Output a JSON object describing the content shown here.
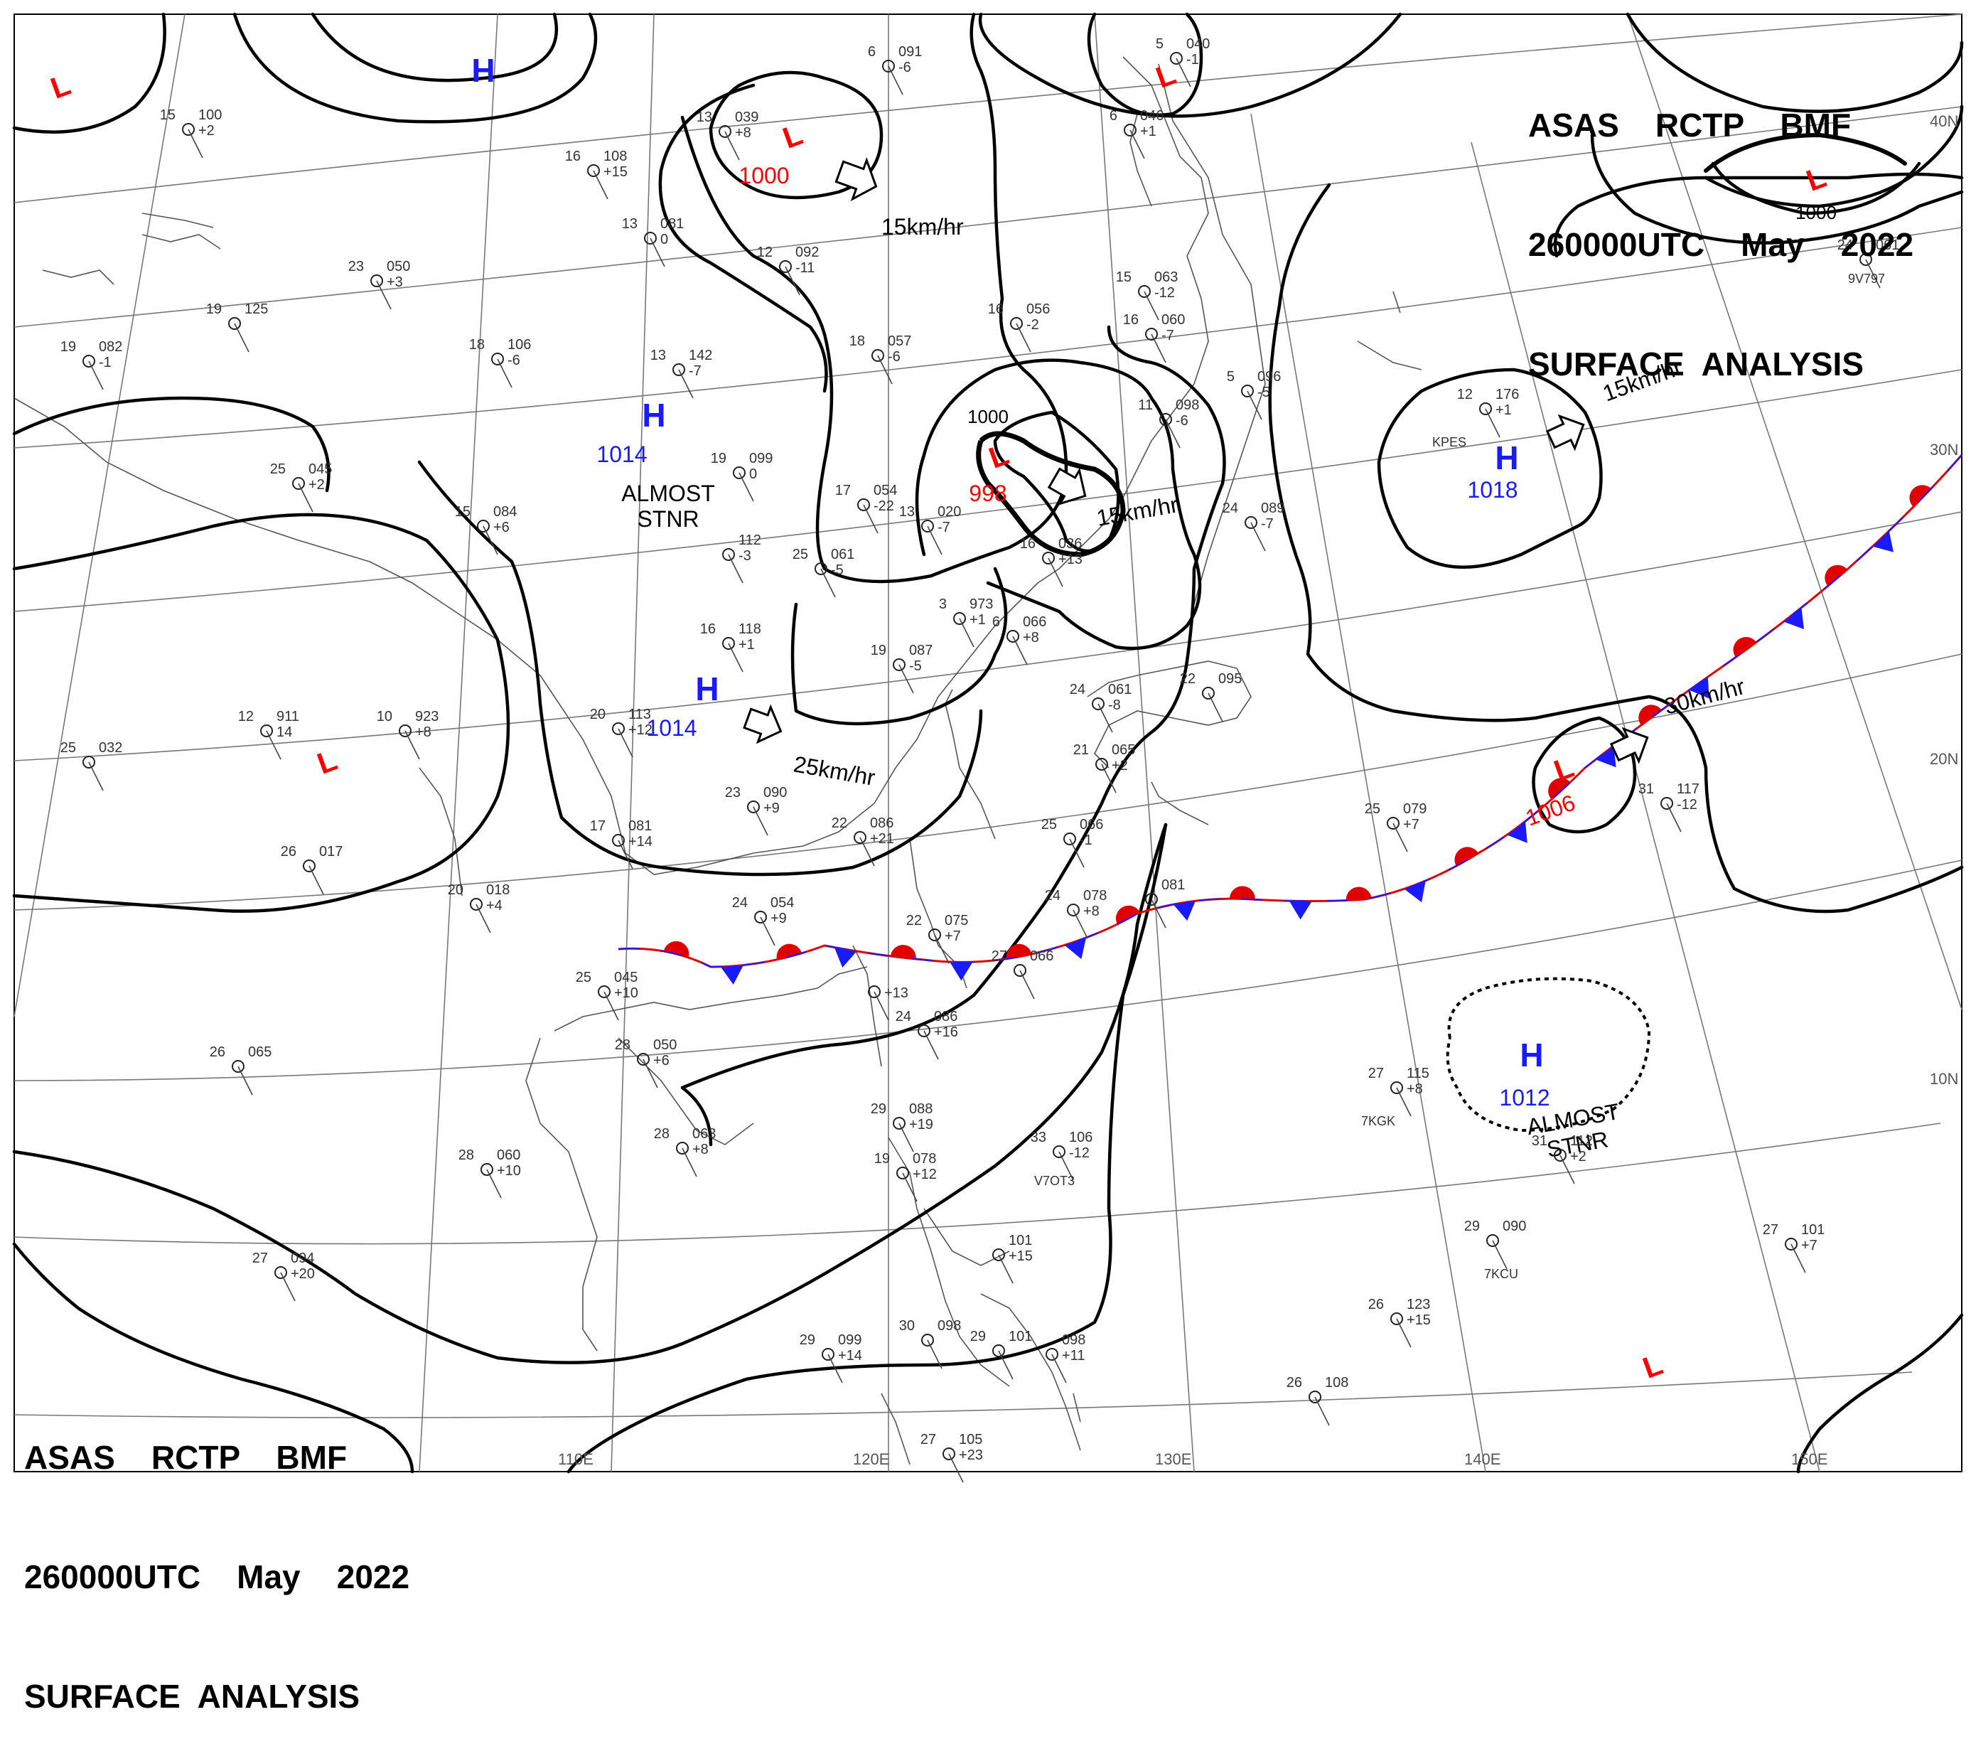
{
  "header": {
    "lines": [
      "ASAS    RCTP    BMF",
      "260000UTC    May    2022",
      "SURFACE  ANALYSIS"
    ]
  },
  "footer": {
    "lines": [
      "ASAS    RCTP    BMF",
      "260000UTC    May    2022",
      "SURFACE  ANALYSIS"
    ]
  },
  "colors": {
    "high": "#1a1aff",
    "low": "#ff0000",
    "isobar": "#000000",
    "grid": "#666666",
    "coast": "#555555"
  },
  "grid": {
    "lon_labels": [
      "110E",
      "120E",
      "130E",
      "140E",
      "150E"
    ],
    "lat_labels": [
      "40N",
      "30N",
      "20N",
      "10N"
    ]
  },
  "pressure_centers": [
    {
      "type": "L",
      "value": ""
    },
    {
      "type": "H",
      "value": ""
    },
    {
      "type": "L",
      "value": "1000"
    },
    {
      "type": "L",
      "value": ""
    },
    {
      "type": "L",
      "value": ""
    },
    {
      "type": "H",
      "value": "1014"
    },
    {
      "type": "L",
      "value": "998"
    },
    {
      "type": "H",
      "value": "1018"
    },
    {
      "type": "H",
      "value": "1014"
    },
    {
      "type": "L",
      "value": ""
    },
    {
      "type": "L",
      "value": "1006"
    },
    {
      "type": "H",
      "value": "1012"
    },
    {
      "type": "L",
      "value": ""
    }
  ],
  "isobar_labels": [
    "1000",
    "1000"
  ],
  "motion": [
    {
      "label": "15km/hr"
    },
    {
      "label": "15km/hr"
    },
    {
      "label": "15km/hr"
    },
    {
      "label": "25km/hr"
    },
    {
      "label": "30km/hr"
    }
  ],
  "annotations": [
    {
      "lines": [
        "ALMOST",
        "STNR"
      ]
    },
    {
      "lines": [
        "ALMOST",
        "STNR"
      ]
    }
  ],
  "stations": [
    {
      "t": "15",
      "p": "100",
      "d": "+2"
    },
    {
      "t": "13",
      "p": "039",
      "d": "+8"
    },
    {
      "t": "6",
      "p": "091",
      "d": "-6"
    },
    {
      "t": "5",
      "p": "040",
      "d": "-1"
    },
    {
      "t": "6",
      "p": "046",
      "d": "+1"
    },
    {
      "t": "16",
      "p": "108",
      "d": "+15"
    },
    {
      "t": "13",
      "p": "081",
      "d": "0"
    },
    {
      "t": "12",
      "p": "092",
      "d": "-11"
    },
    {
      "t": "23",
      "p": "050",
      "d": "+3"
    },
    {
      "t": "19",
      "p": "125",
      "d": ""
    },
    {
      "t": "18",
      "p": "106",
      "d": "-6"
    },
    {
      "t": "19",
      "p": "082",
      "d": "-1"
    },
    {
      "t": "13",
      "p": "142",
      "d": "-7"
    },
    {
      "t": "18",
      "p": "057",
      "d": "-6"
    },
    {
      "t": "16",
      "p": "056",
      "d": "-2"
    },
    {
      "t": "15",
      "p": "063",
      "d": "-12"
    },
    {
      "t": "16",
      "p": "060",
      "d": "-7"
    },
    {
      "t": "5",
      "p": "096",
      "d": "-5"
    },
    {
      "t": "11",
      "p": "098",
      "d": "-6"
    },
    {
      "t": "12",
      "p": "176",
      "d": "+1"
    },
    {
      "t": "24",
      "p": "061",
      "d": ""
    },
    {
      "t": "25",
      "p": "045",
      "d": "+2"
    },
    {
      "t": "15",
      "p": "084",
      "d": "+6"
    },
    {
      "t": "19",
      "p": "099",
      "d": "0"
    },
    {
      "t": "17",
      "p": "054",
      "d": "-22"
    },
    {
      "t": "13",
      "p": "020",
      "d": "-7"
    },
    {
      "t": "16",
      "p": "036",
      "d": "+13"
    },
    {
      "t": "24",
      "p": "089",
      "d": "-7"
    },
    {
      "t": "",
      "p": "112",
      "d": "-3"
    },
    {
      "t": "25",
      "p": "061",
      "d": "-5"
    },
    {
      "t": "3",
      "p": "973",
      "d": "+1"
    },
    {
      "t": "16",
      "p": "118",
      "d": "+1"
    },
    {
      "t": "6",
      "p": "066",
      "d": "+8"
    },
    {
      "t": "19",
      "p": "087",
      "d": "-5"
    },
    {
      "t": "24",
      "p": "061",
      "d": "-8"
    },
    {
      "t": "22",
      "p": "095",
      "d": ""
    },
    {
      "t": "12",
      "p": "911",
      "d": "14"
    },
    {
      "t": "10",
      "p": "923",
      "d": "+8"
    },
    {
      "t": "20",
      "p": "113",
      "d": "+12"
    },
    {
      "t": "21",
      "p": "065",
      "d": "+2"
    },
    {
      "t": "25",
      "p": "032",
      "d": ""
    },
    {
      "t": "23",
      "p": "090",
      "d": "+9"
    },
    {
      "t": "17",
      "p": "081",
      "d": "+14"
    },
    {
      "t": "22",
      "p": "086",
      "d": "+21"
    },
    {
      "t": "25",
      "p": "066",
      "d": "-1"
    },
    {
      "t": "25",
      "p": "079",
      "d": "+7"
    },
    {
      "t": "31",
      "p": "117",
      "d": "-12"
    },
    {
      "t": "26",
      "p": "017",
      "d": ""
    },
    {
      "t": "20",
      "p": "018",
      "d": "+4"
    },
    {
      "t": "24",
      "p": "054",
      "d": "+9"
    },
    {
      "t": "22",
      "p": "075",
      "d": "+7"
    },
    {
      "t": "24",
      "p": "078",
      "d": "+8"
    },
    {
      "t": "",
      "p": "081",
      "d": ""
    },
    {
      "t": "25",
      "p": "045",
      "d": "+10"
    },
    {
      "t": "27",
      "p": "066",
      "d": ""
    },
    {
      "t": "",
      "p": "",
      "d": "+13"
    },
    {
      "t": "24",
      "p": "086",
      "d": "+16"
    },
    {
      "t": "26",
      "p": "065",
      "d": ""
    },
    {
      "t": "28",
      "p": "050",
      "d": "+6"
    },
    {
      "t": "27",
      "p": "115",
      "d": "+8"
    },
    {
      "t": "28",
      "p": "063",
      "d": "+8"
    },
    {
      "t": "28",
      "p": "060",
      "d": "+10"
    },
    {
      "t": "29",
      "p": "088",
      "d": "+19"
    },
    {
      "t": "33",
      "p": "106",
      "d": "-12"
    },
    {
      "t": "19",
      "p": "078",
      "d": "+12"
    },
    {
      "t": "31",
      "p": "112",
      "d": "+2"
    },
    {
      "t": "29",
      "p": "090",
      "d": ""
    },
    {
      "t": "27",
      "p": "101",
      "d": "+7"
    },
    {
      "t": "27",
      "p": "094",
      "d": "+20"
    },
    {
      "t": "",
      "p": "101",
      "d": "+15"
    },
    {
      "t": "26",
      "p": "123",
      "d": "+15"
    },
    {
      "t": "30",
      "p": "098",
      "d": ""
    },
    {
      "t": "29",
      "p": "099",
      "d": "+14"
    },
    {
      "t": "29",
      "p": "101",
      "d": ""
    },
    {
      "t": "",
      "p": "098",
      "d": "+11"
    },
    {
      "t": "26",
      "p": "108",
      "d": ""
    },
    {
      "t": "27",
      "p": "105",
      "d": "+23"
    }
  ],
  "callsigns": [
    "9V797",
    "KPES",
    "7KGK",
    "V7OT3",
    "7KCU"
  ]
}
